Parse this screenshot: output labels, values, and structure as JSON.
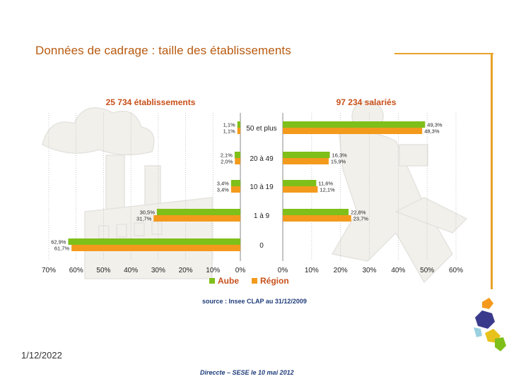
{
  "slide": {
    "title": "Données de cadrage : taille  des établissements",
    "date": "1/12/2022",
    "footer": "Direccte – SESE le 10 mai 2012"
  },
  "colors": {
    "aube": "#7fbf1a",
    "region": "#f39a1c",
    "title": "#b85a10",
    "header": "#c8501a",
    "source": "#1f3c7a",
    "accent_frame": "#e8a32a"
  },
  "chart_data": {
    "type": "bar",
    "layout": "back-to-back horizontal bars (population pyramid)",
    "categories": [
      "50 et plus",
      "20 à 49",
      "10 à 19",
      "1 à 9",
      "0"
    ],
    "left_panel": {
      "title": "25 734 établissements",
      "xticks": [
        "70%",
        "60%",
        "50%",
        "40%",
        "30%",
        "20%",
        "10%",
        "0%"
      ],
      "xlim": [
        0,
        70
      ],
      "series": [
        {
          "name": "Aube",
          "values": [
            1.1,
            2.1,
            3.4,
            30.5,
            62.9
          ],
          "labels": [
            "1,1%",
            "2,1%",
            "3,4%",
            "30,5%",
            "62,9%"
          ]
        },
        {
          "name": "Région",
          "values": [
            1.1,
            2.0,
            3.4,
            31.7,
            61.7
          ],
          "labels": [
            "1,1%",
            "2,0%",
            "3,4%",
            "31,7%",
            "61,7%"
          ]
        }
      ]
    },
    "right_panel": {
      "title": "97 234 salariés",
      "xticks": [
        "0%",
        "10%",
        "20%",
        "30%",
        "40%",
        "50%",
        "60%"
      ],
      "xlim": [
        0,
        60
      ],
      "series": [
        {
          "name": "Aube",
          "values": [
            49.3,
            16.3,
            11.6,
            22.8,
            null
          ],
          "labels": [
            "49,3%",
            "16,3%",
            "11,6%",
            "22,8%",
            ""
          ]
        },
        {
          "name": "Région",
          "values": [
            48.3,
            15.9,
            12.1,
            23.7,
            null
          ],
          "labels": [
            "48,3%",
            "15,9%",
            "12,1%",
            "23,7%",
            ""
          ]
        }
      ]
    },
    "legend": {
      "items": [
        "Aube",
        "Région"
      ],
      "placement": "bottom"
    },
    "source": "source : Insee CLAP au 31/12/2009",
    "grid": true
  }
}
